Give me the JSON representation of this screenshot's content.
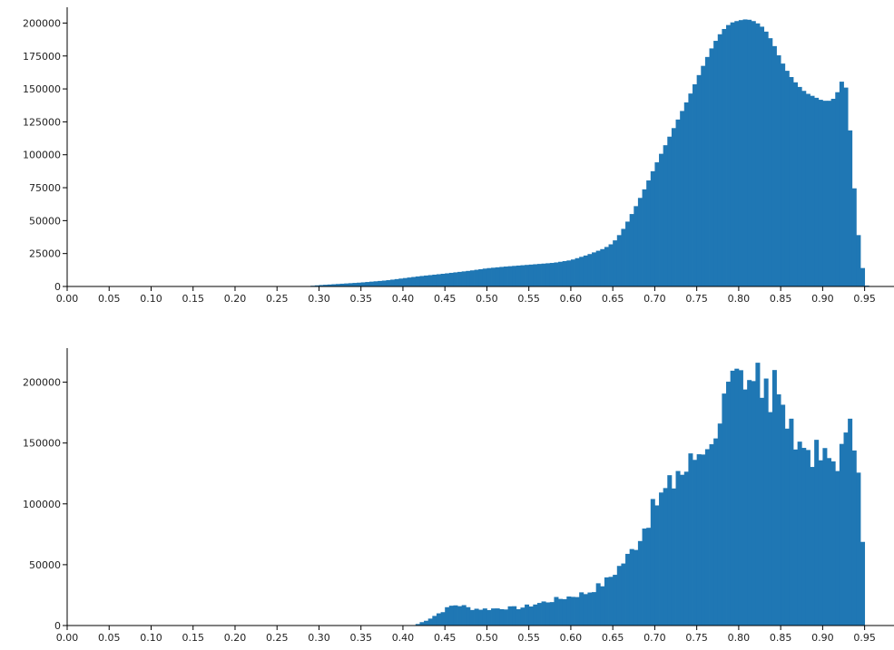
{
  "chart_data": [
    {
      "type": "bar",
      "subtype": "histogram",
      "bin_width": 0.005,
      "xlim": [
        0.0,
        0.985
      ],
      "ylim": [
        0,
        212000
      ],
      "xticks": [
        0.0,
        0.05,
        0.1,
        0.15,
        0.2,
        0.25,
        0.3,
        0.35,
        0.4,
        0.45,
        0.5,
        0.55,
        0.6,
        0.65,
        0.7,
        0.75,
        0.8,
        0.85,
        0.9,
        0.95
      ],
      "xtick_labels": [
        "0.00",
        "0.05",
        "0.10",
        "0.15",
        "0.20",
        "0.25",
        "0.30",
        "0.35",
        "0.40",
        "0.45",
        "0.50",
        "0.55",
        "0.60",
        "0.65",
        "0.70",
        "0.75",
        "0.80",
        "0.85",
        "0.90",
        "0.95"
      ],
      "yticks": [
        0,
        25000,
        50000,
        75000,
        100000,
        125000,
        150000,
        175000,
        200000
      ],
      "ytick_labels": [
        "0",
        "25000",
        "50000",
        "75000",
        "100000",
        "125000",
        "150000",
        "175000",
        "200000"
      ],
      "color": "#1f77b4",
      "points": [
        [
          0.29,
          400
        ],
        [
          0.3,
          1000
        ],
        [
          0.32,
          1800
        ],
        [
          0.35,
          3000
        ],
        [
          0.38,
          4600
        ],
        [
          0.4,
          6200
        ],
        [
          0.42,
          7800
        ],
        [
          0.45,
          9800
        ],
        [
          0.48,
          12000
        ],
        [
          0.5,
          13800
        ],
        [
          0.52,
          15000
        ],
        [
          0.55,
          16500
        ],
        [
          0.58,
          18000
        ],
        [
          0.6,
          20000
        ],
        [
          0.62,
          24000
        ],
        [
          0.64,
          29000
        ],
        [
          0.65,
          33000
        ],
        [
          0.66,
          41000
        ],
        [
          0.67,
          52000
        ],
        [
          0.68,
          64000
        ],
        [
          0.69,
          77000
        ],
        [
          0.7,
          91000
        ],
        [
          0.71,
          104000
        ],
        [
          0.72,
          117000
        ],
        [
          0.73,
          130000
        ],
        [
          0.74,
          143000
        ],
        [
          0.75,
          157000
        ],
        [
          0.76,
          171000
        ],
        [
          0.77,
          184000
        ],
        [
          0.78,
          194000
        ],
        [
          0.79,
          200000
        ],
        [
          0.8,
          202000
        ],
        [
          0.81,
          203000
        ],
        [
          0.82,
          201000
        ],
        [
          0.83,
          196000
        ],
        [
          0.84,
          186000
        ],
        [
          0.85,
          172000
        ],
        [
          0.86,
          161000
        ],
        [
          0.87,
          153000
        ],
        [
          0.88,
          147000
        ],
        [
          0.89,
          144000
        ],
        [
          0.9,
          141000
        ],
        [
          0.91,
          141000
        ],
        [
          0.915,
          144000
        ],
        [
          0.92,
          151000
        ],
        [
          0.925,
          160000
        ],
        [
          0.93,
          142000
        ],
        [
          0.935,
          95000
        ],
        [
          0.94,
          54000
        ],
        [
          0.945,
          24000
        ],
        [
          0.95,
          4000
        ],
        [
          0.953,
          0
        ]
      ]
    },
    {
      "type": "bar",
      "subtype": "histogram",
      "bin_width": 0.005,
      "xlim": [
        0.0,
        0.985
      ],
      "ylim": [
        0,
        228000
      ],
      "xticks": [
        0.0,
        0.05,
        0.1,
        0.15,
        0.2,
        0.25,
        0.3,
        0.35,
        0.4,
        0.45,
        0.5,
        0.55,
        0.6,
        0.65,
        0.7,
        0.75,
        0.8,
        0.85,
        0.9,
        0.95
      ],
      "xtick_labels": [
        "0.00",
        "0.05",
        "0.10",
        "0.15",
        "0.20",
        "0.25",
        "0.30",
        "0.35",
        "0.40",
        "0.45",
        "0.50",
        "0.55",
        "0.60",
        "0.65",
        "0.70",
        "0.75",
        "0.80",
        "0.85",
        "0.90",
        "0.95"
      ],
      "yticks": [
        0,
        50000,
        100000,
        150000,
        200000
      ],
      "ytick_labels": [
        "0",
        "50000",
        "100000",
        "150000",
        "200000"
      ],
      "color": "#1f77b4",
      "points": [
        [
          0.415,
          500
        ],
        [
          0.42,
          2000
        ],
        [
          0.43,
          5000
        ],
        [
          0.44,
          9000
        ],
        [
          0.45,
          13000
        ],
        [
          0.46,
          17000
        ],
        [
          0.47,
          16500
        ],
        [
          0.48,
          14000
        ],
        [
          0.5,
          13500
        ],
        [
          0.52,
          14500
        ],
        [
          0.54,
          14500
        ],
        [
          0.56,
          18000
        ],
        [
          0.58,
          21000
        ],
        [
          0.6,
          24000
        ],
        [
          0.62,
          27000
        ],
        [
          0.64,
          35000
        ],
        [
          0.65,
          42000
        ],
        [
          0.66,
          50000
        ],
        [
          0.67,
          58000
        ],
        [
          0.68,
          70000
        ],
        [
          0.69,
          84000
        ],
        [
          0.7,
          98000
        ],
        [
          0.71,
          108000
        ],
        [
          0.72,
          115000
        ],
        [
          0.73,
          122000
        ],
        [
          0.74,
          130000
        ],
        [
          0.75,
          140000
        ],
        [
          0.76,
          150000
        ],
        [
          0.77,
          162000
        ],
        [
          0.78,
          178000
        ],
        [
          0.79,
          190000
        ],
        [
          0.8,
          196000
        ],
        [
          0.81,
          195000
        ],
        [
          0.82,
          200000
        ],
        [
          0.83,
          192000
        ],
        [
          0.84,
          184000
        ],
        [
          0.85,
          175000
        ],
        [
          0.86,
          168000
        ],
        [
          0.87,
          158000
        ],
        [
          0.88,
          148000
        ],
        [
          0.89,
          140000
        ],
        [
          0.9,
          136000
        ],
        [
          0.91,
          135000
        ],
        [
          0.92,
          138000
        ],
        [
          0.93,
          150000
        ],
        [
          0.935,
          168000
        ],
        [
          0.94,
          150000
        ],
        [
          0.945,
          120000
        ],
        [
          0.95,
          12000
        ],
        [
          0.951,
          0
        ]
      ],
      "spikes": [
        [
          0.695,
          104000
        ],
        [
          0.725,
          127000
        ],
        [
          0.765,
          149000
        ],
        [
          0.805,
          194000
        ],
        [
          0.822,
          216000
        ],
        [
          0.83,
          203000
        ],
        [
          0.838,
          210000
        ],
        [
          0.845,
          190000
        ],
        [
          0.862,
          170000
        ],
        [
          0.876,
          146000
        ],
        [
          0.932,
          170000
        ]
      ],
      "seed": 7
    }
  ]
}
